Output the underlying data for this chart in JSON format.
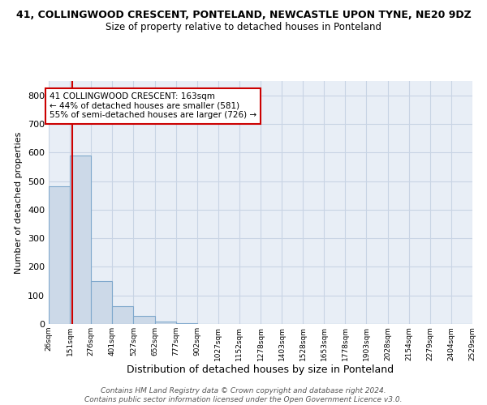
{
  "title_line1": "41, COLLINGWOOD CRESCENT, PONTELAND, NEWCASTLE UPON TYNE, NE20 9DZ",
  "title_line2": "Size of property relative to detached houses in Ponteland",
  "xlabel": "Distribution of detached houses by size in Ponteland",
  "ylabel": "Number of detached properties",
  "bin_edges": [
    26,
    151,
    276,
    401,
    527,
    652,
    777,
    902,
    1027,
    1152,
    1278,
    1403,
    1528,
    1653,
    1778,
    1903,
    2028,
    2154,
    2279,
    2404,
    2529
  ],
  "bar_heights": [
    483,
    590,
    150,
    63,
    28,
    8,
    4,
    0,
    0,
    0,
    0,
    0,
    0,
    0,
    0,
    0,
    0,
    0,
    0,
    0
  ],
  "bar_color": "#ccd9e8",
  "bar_edgecolor": "#7fa8cc",
  "property_sqm": 163,
  "property_line_color": "#cc0000",
  "annotation_line1": "41 COLLINGWOOD CRESCENT: 163sqm",
  "annotation_line2": "← 44% of detached houses are smaller (581)",
  "annotation_line3": "55% of semi-detached houses are larger (726) →",
  "annotation_box_edgecolor": "#cc0000",
  "annotation_box_facecolor": "#ffffff",
  "ylim_max": 850,
  "yticks": [
    0,
    100,
    200,
    300,
    400,
    500,
    600,
    700,
    800
  ],
  "grid_color": "#c8d4e4",
  "background_color": "#e8eef6",
  "footer_line1": "Contains HM Land Registry data © Crown copyright and database right 2024.",
  "footer_line2": "Contains public sector information licensed under the Open Government Licence v3.0."
}
